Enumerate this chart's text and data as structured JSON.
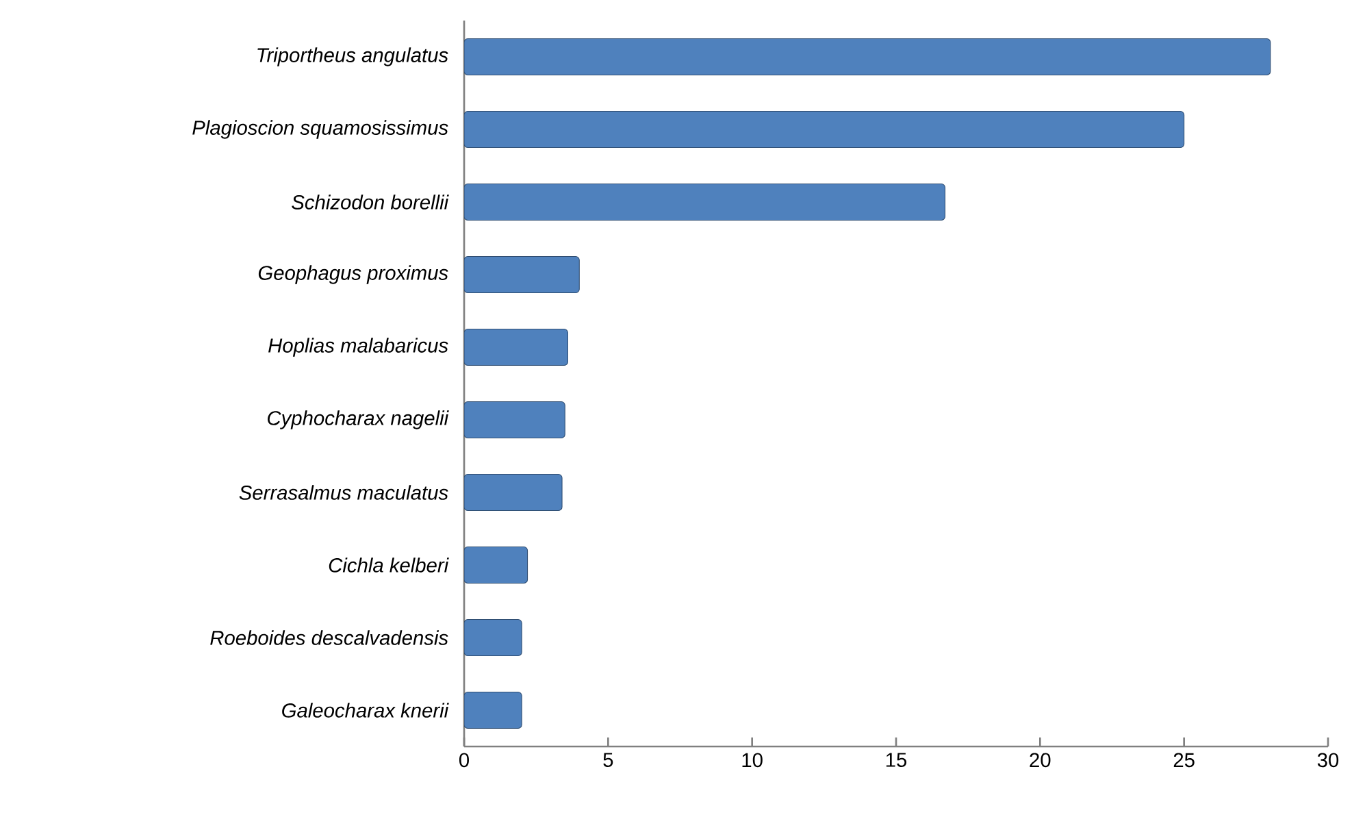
{
  "chart_data": {
    "type": "bar",
    "orientation": "horizontal",
    "categories": [
      "Triportheus angulatus",
      "Plagioscion squamosissimus",
      "Schizodon borellii",
      "Geophagus proximus",
      "Hoplias malabaricus",
      "Cyphocharax nagelii",
      "Serrasalmus maculatus",
      "Cichla kelberi",
      "Roeboides descalvadensis",
      "Galeocharax knerii"
    ],
    "values": [
      28,
      25,
      16.7,
      4,
      3.6,
      3.5,
      3.4,
      2.2,
      2,
      2
    ],
    "color": "#4f81bd",
    "xlim": [
      0,
      30
    ],
    "xticks": [
      0,
      5,
      10,
      15,
      20,
      25,
      30
    ],
    "grid": false
  }
}
